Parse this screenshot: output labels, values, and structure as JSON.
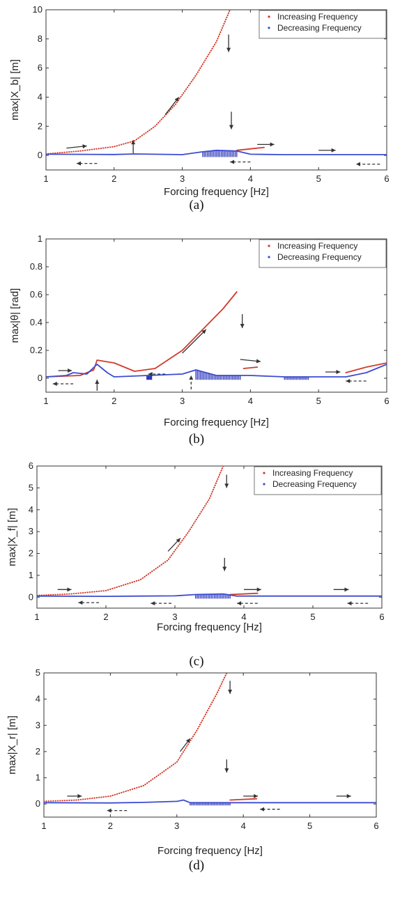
{
  "chart_data": [
    {
      "type": "line",
      "caption": "(a)",
      "xlabel": "Forcing frequency [Hz]",
      "ylabel": "max|X_b| [m]",
      "xlim": [
        1,
        6
      ],
      "ylim": [
        -1,
        10
      ],
      "xticks": [
        "1",
        "2",
        "3",
        "4",
        "5",
        "6"
      ],
      "yticks": [
        "0",
        "2",
        "4",
        "6",
        "8",
        "10"
      ],
      "legend": {
        "position": "top-right",
        "entries": [
          "Increasing Frequency",
          "Decreasing Frequency"
        ]
      },
      "series": [
        {
          "name": "Increasing Frequency",
          "color": "#d23a2a",
          "style": "dotted",
          "points": [
            [
              1,
              0.1
            ],
            [
              1.5,
              0.3
            ],
            [
              2,
              0.6
            ],
            [
              2.3,
              1.0
            ],
            [
              2.6,
              2.0
            ],
            [
              2.9,
              3.5
            ],
            [
              3.2,
              5.5
            ],
            [
              3.5,
              7.8
            ],
            [
              3.7,
              10
            ]
          ]
        },
        {
          "name": "Increasing Frequency",
          "color": "#d23a2a",
          "style": "solid",
          "points": [
            [
              3.8,
              0.35
            ],
            [
              4,
              0.45
            ],
            [
              4.2,
              0.55
            ]
          ]
        },
        {
          "name": "Decreasing Frequency",
          "color": "#3b4bd0",
          "style": "solid",
          "points": [
            [
              1,
              0.08
            ],
            [
              2,
              0.06
            ],
            [
              2.3,
              0.1
            ],
            [
              3,
              0.05
            ],
            [
              3.3,
              0.25
            ],
            [
              3.5,
              0.35
            ],
            [
              3.8,
              0.3
            ],
            [
              4,
              0.08
            ],
            [
              4.5,
              0.05
            ],
            [
              5,
              0.05
            ],
            [
              6,
              0.05
            ]
          ]
        }
      ],
      "band_spans": [
        [
          3.3,
          3.8
        ]
      ],
      "arrows": [
        {
          "x": 1.3,
          "y": 0.5,
          "dx": 0.3,
          "dy": 0.15,
          "dashed": false
        },
        {
          "x": 2.75,
          "y": 2.8,
          "dx": 0.2,
          "dy": 1.2,
          "dashed": false
        },
        {
          "x": 3.68,
          "y": 8.3,
          "dx": 0,
          "dy": -1.2,
          "dashed": false
        },
        {
          "x": 3.72,
          "y": 3.0,
          "dx": 0,
          "dy": -1.2,
          "dashed": false
        },
        {
          "x": 4.1,
          "y": 0.75,
          "dx": 0.25,
          "dy": 0,
          "dashed": false
        },
        {
          "x": 5.0,
          "y": 0.35,
          "dx": 0.25,
          "dy": 0,
          "dashed": false
        },
        {
          "x": 2.28,
          "y": 0.15,
          "dx": 0,
          "dy": 0.9,
          "dashed": false
        },
        {
          "x": 1.75,
          "y": -0.55,
          "dx": -0.3,
          "dy": 0,
          "dashed": true
        },
        {
          "x": 4.0,
          "y": -0.45,
          "dx": -0.3,
          "dy": 0,
          "dashed": true
        },
        {
          "x": 5.9,
          "y": -0.6,
          "dx": -0.35,
          "dy": 0,
          "dashed": true
        }
      ]
    },
    {
      "type": "line",
      "caption": "(b)",
      "xlabel": "Forcing frequency [Hz]",
      "ylabel": "max|θ| [rad]",
      "xlim": [
        1,
        6
      ],
      "ylim": [
        -0.1,
        1
      ],
      "xticks": [
        "1",
        "2",
        "3",
        "4",
        "5",
        "6"
      ],
      "yticks": [
        "0",
        "0.2",
        "0.4",
        "0.6",
        "0.8",
        "1"
      ],
      "legend": {
        "position": "top-right",
        "entries": [
          "Increasing Frequency",
          "Decreasing Frequency"
        ]
      },
      "series": [
        {
          "name": "Increasing Frequency",
          "color": "#d23a2a",
          "style": "solid",
          "points": [
            [
              1,
              0.01
            ],
            [
              1.5,
              0.02
            ],
            [
              1.7,
              0.06
            ],
            [
              1.75,
              0.13
            ],
            [
              2,
              0.11
            ],
            [
              2.3,
              0.05
            ],
            [
              2.6,
              0.07
            ],
            [
              3,
              0.2
            ],
            [
              3.3,
              0.35
            ],
            [
              3.6,
              0.5
            ],
            [
              3.8,
              0.62
            ]
          ]
        },
        {
          "name": "Increasing Frequency",
          "color": "#d23a2a",
          "style": "solid",
          "points": [
            [
              3.9,
              0.07
            ],
            [
              4.1,
              0.08
            ]
          ]
        },
        {
          "name": "Increasing Frequency",
          "color": "#d23a2a",
          "style": "solid",
          "points": [
            [
              5.4,
              0.04
            ],
            [
              5.7,
              0.08
            ],
            [
              6,
              0.11
            ]
          ]
        },
        {
          "name": "Decreasing Frequency",
          "color": "#3b4bd0",
          "style": "solid",
          "points": [
            [
              1,
              0.01
            ],
            [
              1.3,
              0.02
            ],
            [
              1.4,
              0.04
            ],
            [
              1.6,
              0.03
            ],
            [
              1.75,
              0.1
            ],
            [
              1.9,
              0.04
            ],
            [
              2,
              0.01
            ],
            [
              2.5,
              0.02
            ],
            [
              3,
              0.03
            ],
            [
              3.2,
              0.06
            ],
            [
              3.5,
              0.02
            ],
            [
              4,
              0.02
            ],
            [
              4.5,
              0.01
            ],
            [
              5,
              0.01
            ],
            [
              5.4,
              0.01
            ],
            [
              5.7,
              0.04
            ],
            [
              6,
              0.1
            ]
          ]
        }
      ],
      "band_spans": [
        [
          2.48,
          2.55
        ],
        [
          3.2,
          3.85
        ],
        [
          4.5,
          4.85
        ]
      ],
      "arrows": [
        {
          "x": 1.18,
          "y": 0.055,
          "dx": 0.2,
          "dy": 0,
          "dashed": false
        },
        {
          "x": 3.0,
          "y": 0.18,
          "dx": 0.35,
          "dy": 0.17,
          "dashed": false
        },
        {
          "x": 3.88,
          "y": 0.46,
          "dx": 0,
          "dy": -0.1,
          "dashed": false
        },
        {
          "x": 3.85,
          "y": 0.135,
          "dx": 0.3,
          "dy": -0.015,
          "dashed": false
        },
        {
          "x": 5.1,
          "y": 0.045,
          "dx": 0.22,
          "dy": 0,
          "dashed": false
        },
        {
          "x": 1.75,
          "y": -0.09,
          "dx": 0,
          "dy": 0.08,
          "dashed": false
        },
        {
          "x": 3.13,
          "y": -0.08,
          "dx": 0,
          "dy": 0.1,
          "dashed": true
        },
        {
          "x": 1.4,
          "y": -0.04,
          "dx": -0.3,
          "dy": 0,
          "dashed": true
        },
        {
          "x": 2.75,
          "y": 0.03,
          "dx": -0.25,
          "dy": 0,
          "dashed": true
        },
        {
          "x": 5.7,
          "y": -0.02,
          "dx": -0.3,
          "dy": 0,
          "dashed": true
        }
      ]
    },
    {
      "type": "line",
      "caption": "(c)",
      "xlabel": "Forcing frequency [Hz]",
      "ylabel": "max|X_f| [m]",
      "xlim": [
        1,
        6
      ],
      "ylim": [
        -0.5,
        6
      ],
      "xticks": [
        "1",
        "2",
        "3",
        "4",
        "5",
        "6"
      ],
      "yticks": [
        "0",
        "1",
        "2",
        "3",
        "4",
        "5",
        "6"
      ],
      "legend": {
        "position": "top-right",
        "entries": [
          "Increasing Frequency",
          "Decreasing Frequency"
        ]
      },
      "series": [
        {
          "name": "Increasing Frequency",
          "color": "#d23a2a",
          "style": "dotted",
          "points": [
            [
              1,
              0.08
            ],
            [
              1.5,
              0.15
            ],
            [
              2,
              0.3
            ],
            [
              2.5,
              0.8
            ],
            [
              2.9,
              1.7
            ],
            [
              3.2,
              3.0
            ],
            [
              3.5,
              4.5
            ],
            [
              3.7,
              6
            ]
          ]
        },
        {
          "name": "Increasing Frequency",
          "color": "#d23a2a",
          "style": "solid",
          "points": [
            [
              3.8,
              0.12
            ],
            [
              4.2,
              0.18
            ]
          ]
        },
        {
          "name": "Decreasing Frequency",
          "color": "#3b4bd0",
          "style": "solid",
          "points": [
            [
              1,
              0.05
            ],
            [
              2,
              0.04
            ],
            [
              2.5,
              0.05
            ],
            [
              3,
              0.06
            ],
            [
              3.3,
              0.12
            ],
            [
              3.7,
              0.15
            ],
            [
              3.9,
              0.05
            ],
            [
              4.5,
              0.05
            ],
            [
              5,
              0.05
            ],
            [
              6,
              0.05
            ]
          ]
        }
      ],
      "band_spans": [
        [
          3.3,
          3.8
        ]
      ],
      "arrows": [
        {
          "x": 1.3,
          "y": 0.35,
          "dx": 0.2,
          "dy": 0,
          "dashed": false
        },
        {
          "x": 2.9,
          "y": 2.1,
          "dx": 0.18,
          "dy": 0.6,
          "dashed": false
        },
        {
          "x": 3.75,
          "y": 5.6,
          "dx": 0,
          "dy": -0.6,
          "dashed": false
        },
        {
          "x": 3.72,
          "y": 1.8,
          "dx": 0,
          "dy": -0.6,
          "dashed": false
        },
        {
          "x": 4.0,
          "y": 0.35,
          "dx": 0.25,
          "dy": 0,
          "dashed": false
        },
        {
          "x": 5.3,
          "y": 0.35,
          "dx": 0.22,
          "dy": 0,
          "dashed": false
        },
        {
          "x": 1.9,
          "y": -0.25,
          "dx": -0.3,
          "dy": 0,
          "dashed": true
        },
        {
          "x": 2.95,
          "y": -0.28,
          "dx": -0.3,
          "dy": 0,
          "dashed": true
        },
        {
          "x": 4.2,
          "y": -0.28,
          "dx": -0.3,
          "dy": 0,
          "dashed": true
        },
        {
          "x": 5.8,
          "y": -0.28,
          "dx": -0.3,
          "dy": 0,
          "dashed": true
        }
      ]
    },
    {
      "type": "line",
      "caption": "(d)",
      "xlabel": "Forcing frequency [Hz]",
      "ylabel": "max|X_r| [m]",
      "xlim": [
        1,
        6
      ],
      "ylim": [
        -0.5,
        5
      ],
      "xticks": [
        "1",
        "2",
        "3",
        "4",
        "5",
        "6"
      ],
      "yticks": [
        "0",
        "1",
        "2",
        "3",
        "4",
        "5"
      ],
      "series": [
        {
          "name": "",
          "color": "#d23a2a",
          "style": "dotted",
          "points": [
            [
              1,
              0.1
            ],
            [
              1.5,
              0.15
            ],
            [
              2,
              0.3
            ],
            [
              2.5,
              0.7
            ],
            [
              3,
              1.6
            ],
            [
              3.3,
              2.8
            ],
            [
              3.6,
              4.2
            ],
            [
              3.75,
              5
            ]
          ]
        },
        {
          "name": "",
          "color": "#d23a2a",
          "style": "solid",
          "points": [
            [
              3.8,
              0.15
            ],
            [
              4.2,
              0.2
            ]
          ]
        },
        {
          "name": "",
          "color": "#3b4bd0",
          "style": "solid",
          "points": [
            [
              1,
              0.05
            ],
            [
              2,
              0.04
            ],
            [
              2.5,
              0.06
            ],
            [
              3,
              0.1
            ],
            [
              3.1,
              0.15
            ],
            [
              3.2,
              0.05
            ],
            [
              3.5,
              0.05
            ],
            [
              4,
              0.05
            ],
            [
              5,
              0.05
            ],
            [
              6,
              0.05
            ]
          ]
        }
      ],
      "band_spans": [
        [
          3.2,
          3.8
        ]
      ],
      "arrows": [
        {
          "x": 1.35,
          "y": 0.3,
          "dx": 0.22,
          "dy": 0,
          "dashed": false
        },
        {
          "x": 3.05,
          "y": 2.0,
          "dx": 0.15,
          "dy": 0.5,
          "dashed": false
        },
        {
          "x": 3.8,
          "y": 4.7,
          "dx": 0,
          "dy": -0.5,
          "dashed": false
        },
        {
          "x": 3.75,
          "y": 1.7,
          "dx": 0,
          "dy": -0.5,
          "dashed": false
        },
        {
          "x": 4.0,
          "y": 0.3,
          "dx": 0.22,
          "dy": 0,
          "dashed": false
        },
        {
          "x": 5.4,
          "y": 0.3,
          "dx": 0.22,
          "dy": 0,
          "dashed": false
        },
        {
          "x": 2.25,
          "y": -0.25,
          "dx": -0.3,
          "dy": 0,
          "dashed": true
        },
        {
          "x": 4.55,
          "y": -0.2,
          "dx": -0.3,
          "dy": 0,
          "dashed": true
        }
      ]
    }
  ]
}
